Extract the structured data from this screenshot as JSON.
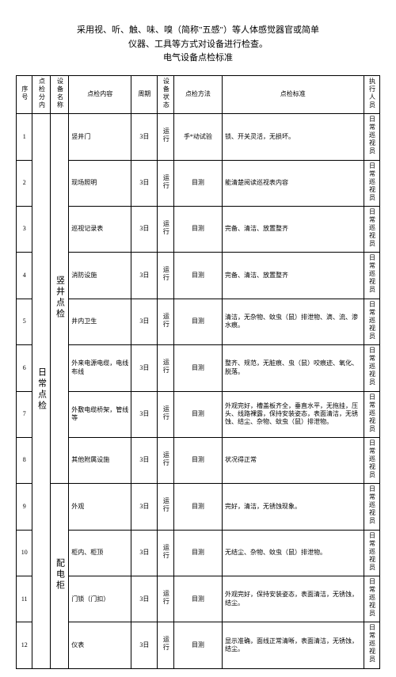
{
  "title_line1": "采用视、听、触、味、嗅（简称\"五感\"）等人体感觉器官或简单",
  "title_line2": "仪器、工具等方式对设备进行检查。",
  "title_line3": "电气设备点检标准",
  "headers": {
    "seq": "序号",
    "category": "点检分内",
    "group": "设备名称",
    "item": "点检内容",
    "period": "周期",
    "status": "设备状态",
    "method": "点检方法",
    "standard": "点检标准",
    "person": "执行人员"
  },
  "category": "日常点检",
  "group1": "竖井点检",
  "group2": "配电柜",
  "period_val": "3日",
  "status_val": "运行",
  "method_vis": "目测",
  "method_hand": "手*动试验",
  "person_val": "日常巡视员",
  "rows": [
    {
      "seq": "1",
      "item": "竖井门",
      "method": "手*动试验",
      "std": "锁、开关灵活，无损坏。"
    },
    {
      "seq": "2",
      "item": "现场照明",
      "method": "目测",
      "std": "能清楚阅读巡视表内容"
    },
    {
      "seq": "3",
      "item": "巡视记录表",
      "method": "目测",
      "std": "完备、清洁、放置整齐"
    },
    {
      "seq": "4",
      "item": "消防设施",
      "method": "目测",
      "std": "完备、清洁、放置整齐"
    },
    {
      "seq": "5",
      "item": "井内卫生",
      "method": "目测",
      "std": "清洁，无杂物、蚊虫（鼠）排泄物、滴、流、渗水痕。"
    },
    {
      "seq": "6",
      "item": "外来电源电缆，电线布线",
      "method": "目测",
      "std": "整齐、规范，无脏痕、虫（鼠）咬痕迹、氧化、脱落。"
    },
    {
      "seq": "7",
      "item": "外敷电缆桥架，管线等",
      "method": "目测",
      "std": "外观完好，槽盖板齐全，垂直水平，无拖挂，压头、线路裸露，保持安装姿态，表面清洁，无锈蚀、结尘、杂物、蚊虫（鼠）排泄物。"
    },
    {
      "seq": "8",
      "item": "其他附属设施",
      "method": "目测",
      "std": "状况得正常"
    },
    {
      "seq": "9",
      "item": "外观",
      "method": "目测",
      "std": "完好，清洁，无锈蚀现象。"
    },
    {
      "seq": "10",
      "item": "柜内、柜顶",
      "method": "目测",
      "std": "无结尘、杂物、蚊虫（鼠）排泄物。"
    },
    {
      "seq": "11",
      "item": "门锁（门扣）",
      "method": "目测",
      "std": "外观完好，保持安装姿态，表面清洁，无锈蚀，结尘。"
    },
    {
      "seq": "12",
      "item": "仪表",
      "method": "目测",
      "std": "显示准确，面线正常清晰，表面清洁，无锈蚀，结尘。"
    }
  ]
}
